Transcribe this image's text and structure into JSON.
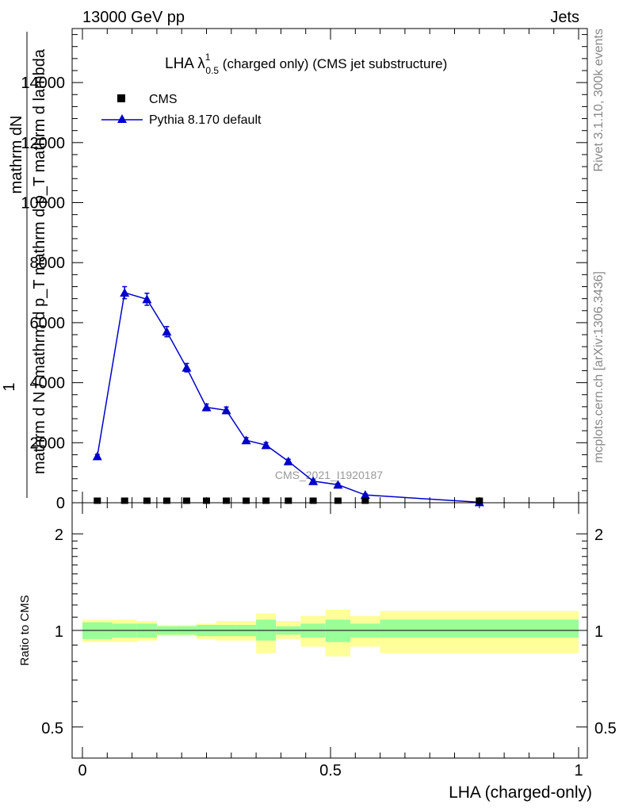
{
  "header": {
    "left": "13000 GeV pp",
    "right": "Jets"
  },
  "side_text": {
    "top": "Rivet 3.1.10,  300k events",
    "bottom": "mcplots.cern.ch [arXiv:1306.3436]"
  },
  "plot": {
    "title_main": "LHA λ",
    "title_sup": "1",
    "title_sub": "0.5",
    "title_rest": " (charged only) (CMS jet substructure)",
    "watermark": "CMS_2021_I1920187",
    "ylabel_frac_num": "mathrm dN",
    "ylabel_one": "1",
    "ylabel_den": "mathrm d N / mathrm d p_T mathrm d p_T mathrm d lambda",
    "xlabel": "LHA (charged-only)",
    "ratio_ylabel": "Ratio to CMS"
  },
  "legend": {
    "data_label": "CMS",
    "mc_label": "Pythia 8.170 default"
  },
  "colors": {
    "mc": "#0000cc",
    "band_inner": "#99ff99",
    "band_outer": "#ffff99",
    "data": "#000000"
  },
  "chart_data": {
    "type": "line",
    "xlim": [
      0,
      1
    ],
    "ylim": [
      0,
      15800
    ],
    "y_ticks": [
      0,
      2000,
      4000,
      6000,
      8000,
      10000,
      12000,
      14000
    ],
    "y_tick_labels": [
      "0",
      "2000",
      "4000",
      "6000",
      "8000",
      "10000",
      "12000",
      "14000"
    ],
    "x_ticks": [
      0,
      0.5,
      1
    ],
    "x_tick_labels": [
      "0",
      "0.5",
      "1"
    ],
    "series": [
      {
        "name": "CMS",
        "x": [
          0.03,
          0.085,
          0.13,
          0.17,
          0.21,
          0.25,
          0.29,
          0.33,
          0.37,
          0.415,
          0.465,
          0.515,
          0.57,
          0.8
        ],
        "y": [
          15,
          15,
          15,
          15,
          15,
          15,
          15,
          15,
          15,
          15,
          15,
          15,
          15,
          15
        ]
      },
      {
        "name": "Pythia 8.170 default",
        "x": [
          0.03,
          0.085,
          0.13,
          0.17,
          0.21,
          0.25,
          0.29,
          0.33,
          0.37,
          0.415,
          0.465,
          0.515,
          0.57,
          0.8
        ],
        "y": [
          1550,
          7000,
          6780,
          5700,
          4500,
          3180,
          3080,
          2080,
          1920,
          1380,
          720,
          600,
          260,
          15
        ],
        "yerr": [
          60,
          200,
          200,
          170,
          140,
          110,
          110,
          90,
          85,
          70,
          50,
          45,
          35,
          5
        ]
      }
    ],
    "ratio": {
      "ylim_log": [
        0.4,
        2.5
      ],
      "y_ticks": [
        0.5,
        1,
        2
      ],
      "y_tick_labels": [
        "0.5",
        "1",
        "2"
      ],
      "bins": [
        [
          0.0,
          0.06,
          0.94,
          1.06,
          0.92,
          1.08
        ],
        [
          0.06,
          0.11,
          0.95,
          1.05,
          0.92,
          1.08
        ],
        [
          0.11,
          0.15,
          0.95,
          1.05,
          0.93,
          1.07
        ],
        [
          0.15,
          0.19,
          0.97,
          1.03,
          0.96,
          1.04
        ],
        [
          0.19,
          0.23,
          0.97,
          1.03,
          0.96,
          1.04
        ],
        [
          0.23,
          0.27,
          0.96,
          1.04,
          0.94,
          1.05
        ],
        [
          0.27,
          0.31,
          0.96,
          1.04,
          0.93,
          1.07
        ],
        [
          0.31,
          0.35,
          0.96,
          1.04,
          0.93,
          1.07
        ],
        [
          0.35,
          0.39,
          0.93,
          1.08,
          0.85,
          1.13
        ],
        [
          0.39,
          0.44,
          0.97,
          1.03,
          0.94,
          1.07
        ],
        [
          0.44,
          0.49,
          0.95,
          1.05,
          0.89,
          1.11
        ],
        [
          0.49,
          0.54,
          0.92,
          1.08,
          0.83,
          1.16
        ],
        [
          0.54,
          0.6,
          0.95,
          1.05,
          0.89,
          1.11
        ],
        [
          0.6,
          1.0,
          0.95,
          1.08,
          0.85,
          1.15
        ]
      ]
    }
  }
}
